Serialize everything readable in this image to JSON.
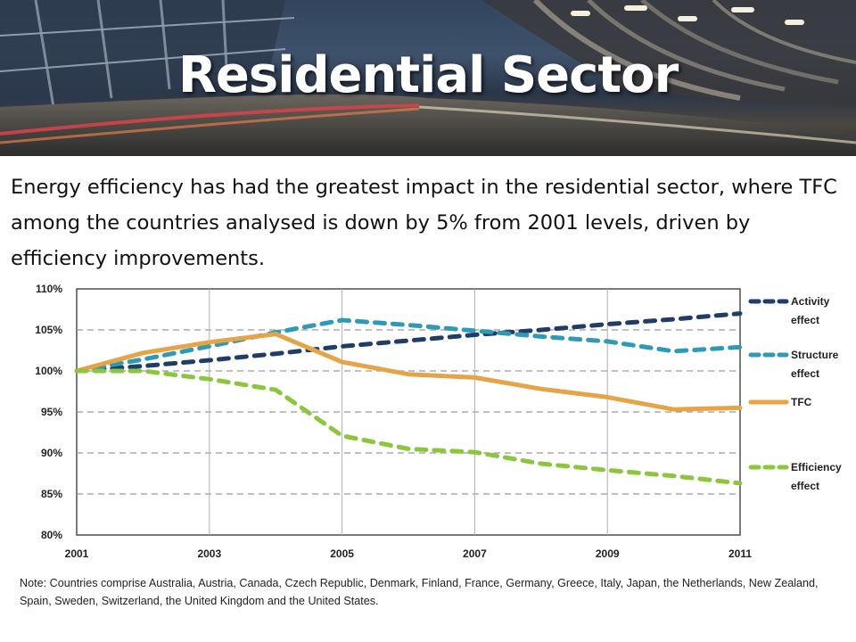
{
  "slide": {
    "title": "Residential Sector",
    "intro": "Energy efficiency has had the greatest impact in the residential sector, where TFC among the countries analysed is down by 5% from 2001 levels, driven by efficiency improvements.",
    "note": "Note: Countries comprise Australia, Austria, Canada, Czech Republic, Denmark, Finland, France, Germany, Greece, Italy, Japan, the Netherlands, New Zealand, Spain, Sweden, Switzerland, the United Kingdom and the United States."
  },
  "chart_data": {
    "type": "line",
    "x": [
      2001,
      2002,
      2003,
      2004,
      2005,
      2006,
      2007,
      2008,
      2009,
      2010,
      2011
    ],
    "x_tick_labels": [
      "2001",
      "2003",
      "2005",
      "2007",
      "2009",
      "2011"
    ],
    "y_tick_labels": [
      "110%",
      "105%",
      "100%",
      "95%",
      "90%",
      "85%",
      "80%"
    ],
    "ylim": [
      80,
      110
    ],
    "grid": true,
    "legend_position": "right",
    "series": [
      {
        "name": "Activity effect",
        "legend_lines": [
          "Activity",
          "effect"
        ],
        "style": "dashed",
        "color": "#1f3d67",
        "values": [
          100,
          100.6,
          101.3,
          102.1,
          103.0,
          103.7,
          104.4,
          105.0,
          105.7,
          106.3,
          107.0
        ]
      },
      {
        "name": "Structure effect",
        "legend_lines": [
          "Structure",
          "effect"
        ],
        "style": "dashed",
        "color": "#2e9ab5",
        "values": [
          100,
          101.4,
          103.0,
          104.7,
          106.2,
          105.6,
          104.9,
          104.2,
          103.6,
          102.4,
          102.9
        ]
      },
      {
        "name": "TFC",
        "legend_lines": [
          "TFC"
        ],
        "style": "solid",
        "color": "#e5a447",
        "values": [
          100,
          102.2,
          103.5,
          104.5,
          101.1,
          99.6,
          99.2,
          97.8,
          96.8,
          95.3,
          95.5
        ]
      },
      {
        "name": "Efficiency effect",
        "legend_lines": [
          "Efficiency",
          "effect"
        ],
        "style": "dashed",
        "color": "#8cc63f",
        "values": [
          100,
          100.0,
          99.0,
          97.7,
          92.1,
          90.5,
          90.1,
          88.7,
          87.9,
          87.2,
          86.3
        ]
      }
    ]
  }
}
